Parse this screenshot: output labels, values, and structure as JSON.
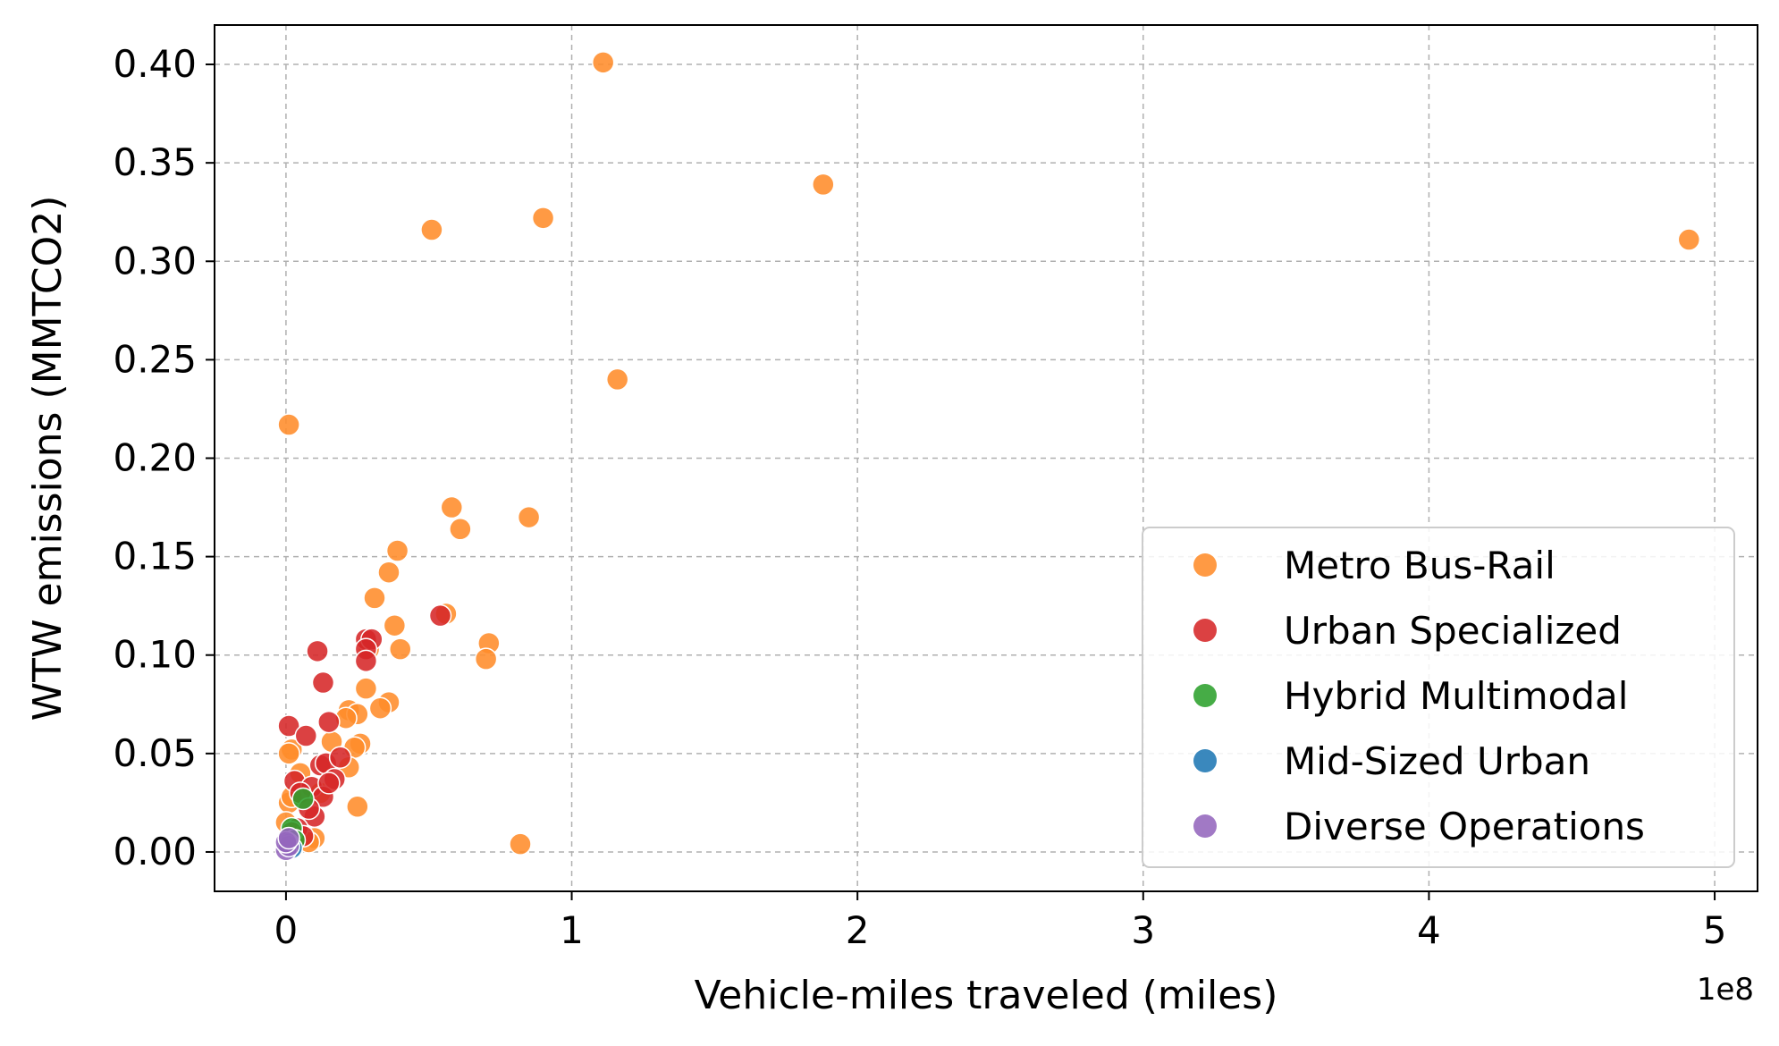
{
  "chart_data": {
    "type": "scatter",
    "xlabel": "Vehicle-miles traveled (miles)",
    "ylabel": "WTW emissions (MMTCO2)",
    "x_offset_label": "1e8",
    "xlim": [
      -0.25,
      5.15
    ],
    "ylim": [
      -0.02,
      0.42
    ],
    "xticks": [
      0,
      1,
      2,
      3,
      4,
      5
    ],
    "xtick_labels": [
      "0",
      "1",
      "2",
      "3",
      "4",
      "5"
    ],
    "yticks": [
      0.0,
      0.05,
      0.1,
      0.15,
      0.2,
      0.25,
      0.3,
      0.35,
      0.4
    ],
    "ytick_labels": [
      "0.00",
      "0.05",
      "0.10",
      "0.15",
      "0.20",
      "0.25",
      "0.30",
      "0.35",
      "0.40"
    ],
    "grid": true,
    "legend_position": "lower-right",
    "series": [
      {
        "name": "Metro Bus-Rail",
        "color": "#ff8c2a",
        "points": [
          [
            1.11,
            0.401
          ],
          [
            1.88,
            0.339
          ],
          [
            4.91,
            0.311
          ],
          [
            0.9,
            0.322
          ],
          [
            0.51,
            0.316
          ],
          [
            1.16,
            0.24
          ],
          [
            0.01,
            0.217
          ],
          [
            0.58,
            0.175
          ],
          [
            0.61,
            0.164
          ],
          [
            0.85,
            0.17
          ],
          [
            0.39,
            0.153
          ],
          [
            0.36,
            0.142
          ],
          [
            0.31,
            0.129
          ],
          [
            0.38,
            0.115
          ],
          [
            0.56,
            0.121
          ],
          [
            0.4,
            0.103
          ],
          [
            0.71,
            0.106
          ],
          [
            0.7,
            0.098
          ],
          [
            0.29,
            0.103
          ],
          [
            0.28,
            0.083
          ],
          [
            0.36,
            0.076
          ],
          [
            0.33,
            0.073
          ],
          [
            0.22,
            0.072
          ],
          [
            0.25,
            0.07
          ],
          [
            0.21,
            0.068
          ],
          [
            0.26,
            0.055
          ],
          [
            0.24,
            0.053
          ],
          [
            0.02,
            0.052
          ],
          [
            0.01,
            0.05
          ],
          [
            0.16,
            0.056
          ],
          [
            0.22,
            0.043
          ],
          [
            0.25,
            0.023
          ],
          [
            0.82,
            0.004
          ],
          [
            0.1,
            0.007
          ],
          [
            0.08,
            0.005
          ],
          [
            0.01,
            0.025
          ],
          [
            0.0,
            0.015
          ],
          [
            0.02,
            0.028
          ],
          [
            0.12,
            0.03
          ],
          [
            0.05,
            0.04
          ]
        ]
      },
      {
        "name": "Urban Specialized",
        "color": "#d62728",
        "points": [
          [
            0.11,
            0.102
          ],
          [
            0.13,
            0.086
          ],
          [
            0.01,
            0.064
          ],
          [
            0.07,
            0.059
          ],
          [
            0.15,
            0.066
          ],
          [
            0.28,
            0.108
          ],
          [
            0.3,
            0.108
          ],
          [
            0.28,
            0.103
          ],
          [
            0.28,
            0.097
          ],
          [
            0.54,
            0.12
          ],
          [
            0.12,
            0.044
          ],
          [
            0.14,
            0.045
          ],
          [
            0.03,
            0.036
          ],
          [
            0.09,
            0.033
          ],
          [
            0.17,
            0.037
          ],
          [
            0.05,
            0.03
          ],
          [
            0.13,
            0.028
          ],
          [
            0.1,
            0.018
          ],
          [
            0.04,
            0.012
          ],
          [
            0.06,
            0.008
          ],
          [
            0.02,
            0.01
          ],
          [
            0.19,
            0.048
          ],
          [
            0.08,
            0.022
          ],
          [
            0.15,
            0.035
          ]
        ]
      },
      {
        "name": "Hybrid Multimodal",
        "color": "#2ca02c",
        "points": [
          [
            0.06,
            0.027
          ],
          [
            0.02,
            0.012
          ],
          [
            0.03,
            0.006
          ]
        ]
      },
      {
        "name": "Mid-Sized Urban",
        "color": "#1f77b4",
        "points": [
          [
            0.01,
            0.004
          ],
          [
            0.02,
            0.002
          ]
        ]
      },
      {
        "name": "Diverse Operations",
        "color": "#9467bd",
        "points": [
          [
            0.0,
            0.001
          ],
          [
            0.01,
            0.003
          ],
          [
            0.0,
            0.005
          ],
          [
            0.01,
            0.007
          ]
        ]
      }
    ]
  }
}
